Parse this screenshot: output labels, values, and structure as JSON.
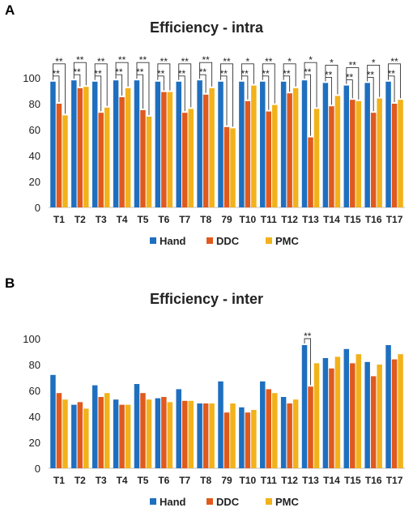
{
  "colors": {
    "Hand": "#1f6fbf",
    "DDC": "#e05a1e",
    "PMC": "#f2b21b"
  },
  "chart_data": [
    {
      "panel": "A",
      "type": "bar",
      "title": "Efficiency - intra",
      "categories": [
        "T1",
        "T2",
        "T3",
        "T4",
        "T5",
        "T6",
        "T7",
        "T8",
        "79",
        "T10",
        "T11",
        "T12",
        "T13",
        "T14",
        "T15",
        "T16",
        "T17"
      ],
      "series": [
        {
          "name": "Hand",
          "values": [
            97,
            98,
            97,
            98,
            98,
            97,
            97,
            98,
            97,
            97,
            97,
            97,
            98,
            96,
            94,
            96,
            97
          ]
        },
        {
          "name": "DDC",
          "values": [
            80,
            92,
            73,
            85,
            75,
            89,
            73,
            87,
            62,
            82,
            74,
            88,
            54,
            78,
            83,
            73,
            80
          ]
        },
        {
          "name": "PMC",
          "values": [
            71,
            93,
            77,
            92,
            70,
            89,
            76,
            92,
            61,
            94,
            79,
            92,
            76,
            86,
            82,
            84,
            83
          ]
        }
      ],
      "ylim": [
        0,
        110
      ],
      "yticks": [
        0,
        20,
        40,
        60,
        80,
        100
      ],
      "significance": {
        "hand_ddc": [
          "**",
          "**",
          "**",
          "**",
          "**",
          "**",
          "**",
          "**",
          "**",
          "**",
          "**",
          "**",
          "**",
          "**",
          "**",
          "**",
          "**"
        ],
        "hand_pmc": [
          "**",
          "**",
          "**",
          "**",
          "**",
          "**",
          "**",
          "**",
          "**",
          "*",
          "**",
          "*",
          "*",
          "*",
          "**",
          "*",
          "**"
        ]
      },
      "legend": [
        "Hand",
        "DDC",
        "PMC"
      ],
      "grid": false
    },
    {
      "panel": "B",
      "type": "bar",
      "title": "Efficiency - inter",
      "categories": [
        "T1",
        "T2",
        "T3",
        "T4",
        "T5",
        "T6",
        "T7",
        "T8",
        "79",
        "T10",
        "T11",
        "T12",
        "T13",
        "T14",
        "T15",
        "T16",
        "T17"
      ],
      "series": [
        {
          "name": "Hand",
          "values": [
            72,
            49,
            64,
            53,
            65,
            54,
            61,
            50,
            67,
            47,
            67,
            55,
            95,
            85,
            92,
            82,
            95
          ]
        },
        {
          "name": "DDC",
          "values": [
            58,
            51,
            55,
            49,
            58,
            55,
            52,
            50,
            43,
            43,
            61,
            50,
            63,
            77,
            81,
            71,
            84
          ]
        },
        {
          "name": "PMC",
          "values": [
            53,
            46,
            58,
            49,
            53,
            51,
            52,
            50,
            50,
            45,
            58,
            53,
            81,
            86,
            88,
            80,
            88
          ]
        }
      ],
      "ylim": [
        0,
        110
      ],
      "yticks": [
        0,
        20,
        40,
        60,
        80,
        100
      ],
      "significance": {
        "T13": "**"
      },
      "legend": [
        "Hand",
        "DDC",
        "PMC"
      ],
      "grid": false
    }
  ]
}
